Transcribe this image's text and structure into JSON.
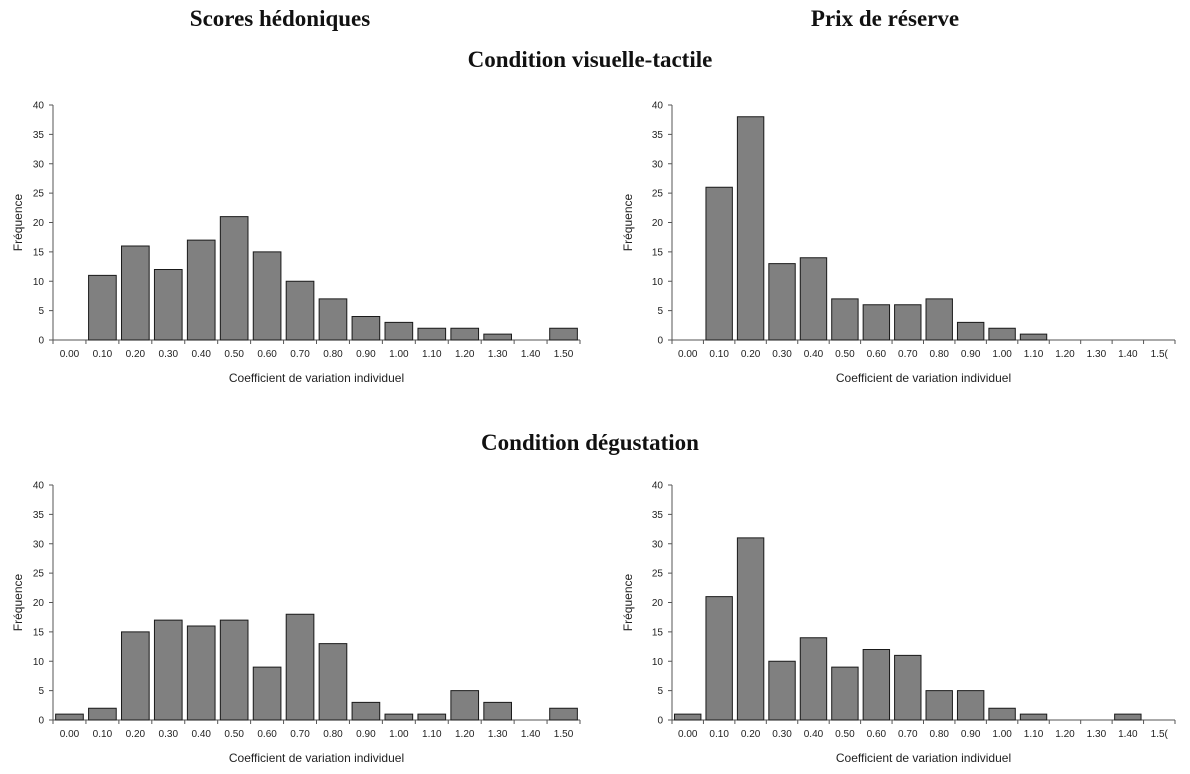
{
  "headers": {
    "col_left": "Scores hédoniques",
    "col_right": "Prix de réserve",
    "condition_1": "Condition visuelle-tactile",
    "condition_2": "Condition dégustation"
  },
  "colors": {
    "bar_fill": "#808080",
    "bar_stroke": "#1a1a1a",
    "axis": "#555555"
  },
  "chart_data": [
    {
      "id": "vt-hedonic",
      "type": "bar",
      "categories": [
        "0.00",
        "0.10",
        "0.20",
        "0.30",
        "0.40",
        "0.50",
        "0.60",
        "0.70",
        "0.80",
        "0.90",
        "1.00",
        "1.10",
        "1.20",
        "1.30",
        "1.40",
        "1.50"
      ],
      "values": [
        0,
        11,
        16,
        12,
        17,
        21,
        15,
        10,
        7,
        4,
        3,
        2,
        2,
        1,
        0,
        2
      ],
      "xlabel": "Coefficient de variation individuel",
      "ylabel": "Fréquence",
      "ylim": [
        0,
        40
      ],
      "yticks": [
        0,
        5,
        10,
        15,
        20,
        25,
        30,
        35,
        40
      ],
      "grid": false
    },
    {
      "id": "vt-price",
      "type": "bar",
      "categories": [
        "0.00",
        "0.10",
        "0.20",
        "0.30",
        "0.40",
        "0.50",
        "0.60",
        "0.70",
        "0.80",
        "0.90",
        "1.00",
        "1.10",
        "1.20",
        "1.30",
        "1.40",
        "1.5("
      ],
      "values": [
        0,
        26,
        38,
        13,
        14,
        7,
        6,
        6,
        7,
        3,
        2,
        1,
        0,
        0,
        0,
        0
      ],
      "xlabel": "Coefficient de variation individuel",
      "ylabel": "Fréquence",
      "ylim": [
        0,
        40
      ],
      "yticks": [
        0,
        5,
        10,
        15,
        20,
        25,
        30,
        35,
        40
      ],
      "grid": false
    },
    {
      "id": "deg-hedonic",
      "type": "bar",
      "categories": [
        "0.00",
        "0.10",
        "0.20",
        "0.30",
        "0.40",
        "0.50",
        "0.60",
        "0.70",
        "0.80",
        "0.90",
        "1.00",
        "1.10",
        "1.20",
        "1.30",
        "1.40",
        "1.50"
      ],
      "values": [
        1,
        2,
        15,
        17,
        16,
        17,
        9,
        18,
        13,
        3,
        1,
        1,
        5,
        3,
        0,
        2
      ],
      "xlabel": "Coefficient de variation individuel",
      "ylabel": "Fréquence",
      "ylim": [
        0,
        40
      ],
      "yticks": [
        0,
        5,
        10,
        15,
        20,
        25,
        30,
        35,
        40
      ],
      "grid": false
    },
    {
      "id": "deg-price",
      "type": "bar",
      "categories": [
        "0.00",
        "0.10",
        "0.20",
        "0.30",
        "0.40",
        "0.50",
        "0.60",
        "0.70",
        "0.80",
        "0.90",
        "1.00",
        "1.10",
        "1.20",
        "1.30",
        "1.40",
        "1.5("
      ],
      "values": [
        1,
        21,
        31,
        10,
        14,
        9,
        12,
        11,
        5,
        5,
        2,
        1,
        0,
        0,
        1,
        0
      ],
      "xlabel": "Coefficient de variation individuel",
      "ylabel": "Fréquence",
      "ylim": [
        0,
        40
      ],
      "yticks": [
        0,
        5,
        10,
        15,
        20,
        25,
        30,
        35,
        40
      ],
      "grid": false
    }
  ]
}
